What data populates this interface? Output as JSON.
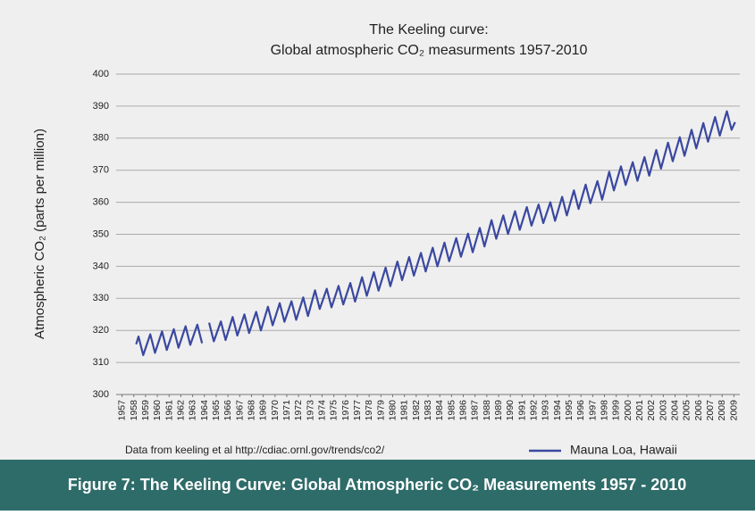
{
  "chart_data": {
    "type": "line",
    "title": "The Keeling curve:",
    "subtitle": "Global atmospheric CO₂ measurments 1957-2010",
    "y_label": "Atmospheric CO₂ (parts per million)",
    "source": "Data from keeling et al http://cdiac.ornl.gov/trends/co2/",
    "caption": "Figure 7:  The Keeling Curve: Global Atmospheric CO₂ Measurements 1957 - 2010",
    "xlim": [
      1956.5,
      2009.5
    ],
    "xticks": [
      1957,
      1958,
      1959,
      1960,
      1961,
      1962,
      1963,
      1964,
      1965,
      1966,
      1967,
      1968,
      1969,
      1970,
      1971,
      1972,
      1973,
      1974,
      1975,
      1976,
      1977,
      1978,
      1979,
      1980,
      1981,
      1982,
      1983,
      1984,
      1985,
      1986,
      1987,
      1988,
      1989,
      1990,
      1991,
      1992,
      1993,
      1994,
      1995,
      1996,
      1997,
      1998,
      1999,
      2000,
      2001,
      2002,
      2003,
      2004,
      2005,
      2006,
      2007,
      2008,
      2009
    ],
    "ylim": [
      300,
      400
    ],
    "yticks": [
      300,
      310,
      320,
      330,
      340,
      350,
      360,
      370,
      380,
      390,
      400
    ],
    "grid": true,
    "legend": "bottom-right",
    "x": [
      1958.2,
      1958.4,
      1958.8,
      1959.4,
      1959.8,
      1960.4,
      1960.8,
      1961.4,
      1961.8,
      1962.4,
      1962.8,
      1963.4,
      1963.8,
      1964.1,
      1964.4,
      1964.8,
      1965.4,
      1965.8,
      1966.4,
      1966.8,
      1967.4,
      1967.8,
      1968.4,
      1968.8,
      1969.4,
      1969.8,
      1970.4,
      1970.8,
      1971.4,
      1971.8,
      1972.4,
      1972.8,
      1973.4,
      1973.8,
      1974.4,
      1974.8,
      1975.4,
      1975.8,
      1976.4,
      1976.8,
      1977.4,
      1977.8,
      1978.4,
      1978.8,
      1979.4,
      1979.8,
      1980.4,
      1980.8,
      1981.4,
      1981.8,
      1982.4,
      1982.8,
      1983.4,
      1983.8,
      1984.4,
      1984.8,
      1985.4,
      1985.8,
      1986.4,
      1986.8,
      1987.4,
      1987.8,
      1988.4,
      1988.8,
      1989.4,
      1989.8,
      1990.4,
      1990.8,
      1991.4,
      1991.8,
      1992.4,
      1992.8,
      1993.4,
      1993.8,
      1994.4,
      1994.8,
      1995.4,
      1995.8,
      1996.4,
      1996.8,
      1997.4,
      1997.8,
      1998.4,
      1998.8,
      1999.4,
      1999.8,
      2000.4,
      2000.8,
      2001.4,
      2001.8,
      2002.4,
      2002.8,
      2003.4,
      2003.8,
      2004.4,
      2004.8,
      2005.4,
      2005.8,
      2006.4,
      2006.8,
      2007.4,
      2007.8,
      2008.4,
      2008.8,
      2009.1
    ],
    "series": [
      {
        "name": "Mauna Loa, Hawaii",
        "color": "#3a48a0",
        "values": [
          315.7,
          318.1,
          312.3,
          318.8,
          313.0,
          319.7,
          313.9,
          320.4,
          314.6,
          321.3,
          315.5,
          321.8,
          316.0,
          null,
          322.4,
          316.6,
          322.8,
          317.0,
          324.2,
          318.4,
          325.0,
          319.2,
          325.8,
          320.0,
          327.4,
          321.6,
          328.5,
          322.7,
          329.1,
          323.3,
          330.3,
          324.5,
          332.5,
          326.7,
          333.0,
          327.2,
          333.9,
          328.1,
          334.8,
          329.0,
          336.6,
          330.8,
          338.2,
          332.4,
          339.6,
          333.8,
          341.5,
          335.7,
          342.9,
          337.1,
          344.2,
          338.4,
          345.8,
          340.0,
          347.4,
          341.6,
          348.8,
          343.0,
          350.2,
          344.4,
          352.0,
          346.2,
          354.4,
          348.6,
          355.9,
          350.1,
          357.2,
          351.4,
          358.5,
          352.7,
          359.3,
          353.5,
          360.0,
          354.2,
          361.7,
          355.9,
          363.7,
          357.9,
          365.5,
          359.7,
          366.6,
          360.8,
          369.5,
          363.7,
          371.2,
          365.4,
          372.5,
          366.7,
          374.1,
          368.3,
          376.3,
          370.5,
          378.6,
          372.8,
          380.3,
          374.5,
          382.6,
          376.8,
          384.7,
          378.9,
          386.6,
          380.8,
          388.4,
          382.6,
          385.0
        ]
      }
    ]
  }
}
